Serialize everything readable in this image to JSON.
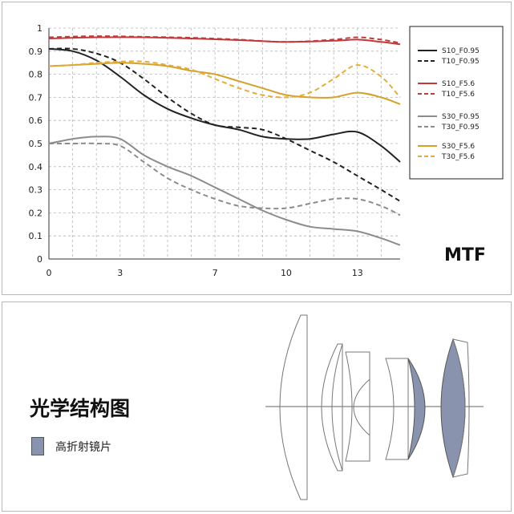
{
  "chart_data": {
    "type": "line",
    "title": "MTF",
    "xlim": [
      0,
      14.8
    ],
    "ylim": [
      0,
      1
    ],
    "x_ticks": [
      0,
      3,
      7,
      10,
      13
    ],
    "y_ticks": [
      0,
      0.1,
      0.2,
      0.3,
      0.4,
      0.5,
      0.6,
      0.7,
      0.8,
      0.9,
      1
    ],
    "y_tick_labels": [
      "0",
      "0.1",
      "0.2",
      "0.3",
      "0.4",
      "0.5",
      "0.6",
      "0.7",
      "0.8",
      "0.9",
      "1"
    ],
    "grid": true,
    "legend_position": "right",
    "series": [
      {
        "name": "S10_F0.95",
        "color": "#222222",
        "dash": false,
        "x": [
          0,
          1,
          2,
          3,
          4,
          5,
          6,
          7,
          8,
          9,
          10,
          11,
          12,
          13,
          14,
          14.8
        ],
        "y": [
          0.91,
          0.9,
          0.86,
          0.79,
          0.71,
          0.65,
          0.61,
          0.58,
          0.56,
          0.53,
          0.52,
          0.52,
          0.54,
          0.55,
          0.49,
          0.42
        ]
      },
      {
        "name": "T10_F0.95",
        "color": "#222222",
        "dash": true,
        "x": [
          0,
          1,
          2,
          3,
          4,
          5,
          6,
          7,
          8,
          9,
          10,
          11,
          12,
          13,
          14,
          14.8
        ],
        "y": [
          0.91,
          0.91,
          0.89,
          0.85,
          0.78,
          0.7,
          0.63,
          0.58,
          0.57,
          0.56,
          0.52,
          0.47,
          0.42,
          0.36,
          0.3,
          0.25
        ]
      },
      {
        "name": "S10_F5.6",
        "color": "#c0393b",
        "dash": false,
        "x": [
          0,
          2,
          4,
          6,
          8,
          10,
          12,
          13,
          14,
          14.8
        ],
        "y": [
          0.955,
          0.96,
          0.96,
          0.955,
          0.948,
          0.94,
          0.945,
          0.95,
          0.94,
          0.93
        ]
      },
      {
        "name": "T10_F5.6",
        "color": "#c0393b",
        "dash": true,
        "x": [
          0,
          2,
          4,
          6,
          8,
          10,
          12,
          13,
          14,
          14.8
        ],
        "y": [
          0.96,
          0.965,
          0.962,
          0.958,
          0.95,
          0.94,
          0.95,
          0.96,
          0.95,
          0.935
        ]
      },
      {
        "name": "S30_F0.95",
        "color": "#8c8c8c",
        "dash": false,
        "x": [
          0,
          1,
          2,
          3,
          4,
          5,
          6,
          7,
          8,
          9,
          10,
          11,
          12,
          13,
          14,
          14.8
        ],
        "y": [
          0.5,
          0.52,
          0.53,
          0.52,
          0.45,
          0.4,
          0.36,
          0.31,
          0.26,
          0.21,
          0.17,
          0.14,
          0.13,
          0.12,
          0.09,
          0.06
        ]
      },
      {
        "name": "T30_F0.95",
        "color": "#8c8c8c",
        "dash": true,
        "x": [
          0,
          1,
          2,
          3,
          4,
          5,
          6,
          7,
          8,
          9,
          10,
          11,
          12,
          13,
          14,
          14.8
        ],
        "y": [
          0.5,
          0.5,
          0.5,
          0.49,
          0.42,
          0.35,
          0.3,
          0.26,
          0.23,
          0.22,
          0.22,
          0.24,
          0.26,
          0.26,
          0.23,
          0.19
        ]
      },
      {
        "name": "S30_F5.6",
        "color": "#d4a12a",
        "dash": false,
        "x": [
          0,
          1,
          2,
          3,
          4,
          5,
          6,
          7,
          8,
          9,
          10,
          11,
          12,
          13,
          14,
          14.8
        ],
        "y": [
          0.835,
          0.84,
          0.845,
          0.85,
          0.845,
          0.835,
          0.815,
          0.8,
          0.77,
          0.74,
          0.71,
          0.7,
          0.7,
          0.72,
          0.7,
          0.67
        ]
      },
      {
        "name": "T30_F5.6",
        "color": "#e6ac3a",
        "dash": true,
        "x": [
          0,
          1,
          2,
          3,
          4,
          5,
          6,
          7,
          8,
          9,
          10,
          11,
          12,
          13,
          14,
          14.8
        ],
        "y": [
          0.835,
          0.84,
          0.85,
          0.855,
          0.855,
          0.84,
          0.82,
          0.78,
          0.74,
          0.71,
          0.7,
          0.72,
          0.78,
          0.84,
          0.79,
          0.7
        ]
      }
    ]
  },
  "optics": {
    "title": "光学结构图",
    "legend_label": "高折射镜片",
    "legend_color": "#8a93ad"
  }
}
